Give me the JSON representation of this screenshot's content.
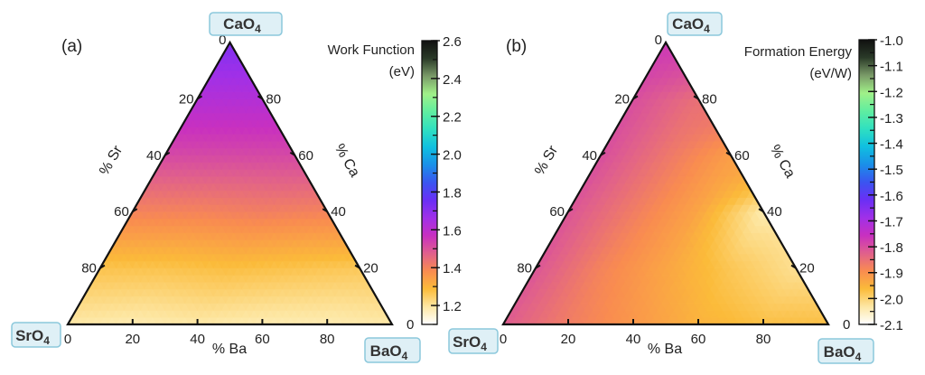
{
  "chart_data": [
    {
      "type": "heatmap",
      "subtype": "ternary",
      "panel_label": "(a)",
      "vertices": {
        "top": "CaO",
        "left": "SrO",
        "right": "BaO",
        "subscript": "4"
      },
      "axes": {
        "left": "% Sr",
        "right": "% Ca",
        "bottom": "% Ba"
      },
      "axis_ticks": [
        "0",
        "20",
        "40",
        "60",
        "80"
      ],
      "right_axis_ticks": [
        "0",
        "20",
        "40",
        "60",
        "80"
      ],
      "colorbar": {
        "title_line1": "Work Function",
        "title_line2": "(eV)",
        "range": [
          1.1,
          2.6
        ],
        "ticks": [
          "1.2",
          "1.4",
          "1.6",
          "1.8",
          "2.0",
          "2.2",
          "2.4",
          "2.6"
        ],
        "tick_values": [
          1.2,
          1.4,
          1.6,
          1.8,
          2.0,
          2.2,
          2.4,
          2.6
        ],
        "minor_step": 0.1
      },
      "grid_note_rows_by_Ca_percent": [
        100,
        80,
        60,
        40,
        20,
        0
      ],
      "grid_columns_by_Ba_percent_step": 20,
      "values": [
        [
          1.72
        ],
        [
          1.62,
          1.62
        ],
        [
          1.52,
          1.52,
          1.52
        ],
        [
          1.4,
          1.4,
          1.41,
          1.4
        ],
        [
          1.27,
          1.27,
          1.28,
          1.27,
          1.26
        ],
        [
          1.19,
          1.18,
          1.19,
          1.18,
          1.18,
          1.19
        ]
      ]
    },
    {
      "type": "heatmap",
      "subtype": "ternary",
      "panel_label": "(b)",
      "vertices": {
        "top": "CaO",
        "left": "SrO",
        "right": "BaO",
        "subscript": "4"
      },
      "axes": {
        "left": "% Sr",
        "right": "% Ca",
        "bottom": "% Ba"
      },
      "axis_ticks": [
        "0",
        "20",
        "40",
        "60",
        "80"
      ],
      "right_axis_ticks": [
        "0",
        "20",
        "40",
        "60",
        "80"
      ],
      "colorbar": {
        "title_line1": "Formation Energy",
        "title_line2": "(eV/W)",
        "range": [
          -2.1,
          -1.0
        ],
        "ticks": [
          "-2.1",
          "-2.0",
          "-1.9",
          "-1.8",
          "-1.7",
          "-1.6",
          "-1.5",
          "-1.4",
          "-1.3",
          "-1.2",
          "-1.1",
          "-1.0"
        ],
        "tick_values": [
          -2.1,
          -2.0,
          -1.9,
          -1.8,
          -1.7,
          -1.6,
          -1.5,
          -1.4,
          -1.3,
          -1.2,
          -1.1,
          -1.0
        ],
        "minor_step": 0.05
      },
      "grid_note_rows_by_Ca_percent": [
        100,
        80,
        60,
        40,
        20,
        0
      ],
      "grid_columns_by_Ba_percent_step": 20,
      "values": [
        [
          -1.77
        ],
        [
          -1.8,
          -1.85
        ],
        [
          -1.8,
          -1.86,
          -1.92
        ],
        [
          -1.81,
          -1.87,
          -1.93,
          -2.04
        ],
        [
          -1.81,
          -1.88,
          -1.93,
          -1.98,
          -2.02
        ],
        [
          -1.82,
          -1.87,
          -1.91,
          -1.95,
          -1.97,
          -1.97
        ]
      ]
    }
  ],
  "colormap": [
    "#ffffff",
    "#fde7a4",
    "#fbbb3a",
    "#f98c50",
    "#e0608c",
    "#c830c0",
    "#a030e8",
    "#6a2ff5",
    "#3a55f0",
    "#1a90e8",
    "#10c0e0",
    "#30e0c0",
    "#60eea0",
    "#a0f088",
    "#7a9a68",
    "#2a3a28",
    "#101010"
  ],
  "colors": {
    "label_box_fill": "#dff0f6",
    "label_box_border": "#8cc8dc",
    "edge": "#111111"
  }
}
